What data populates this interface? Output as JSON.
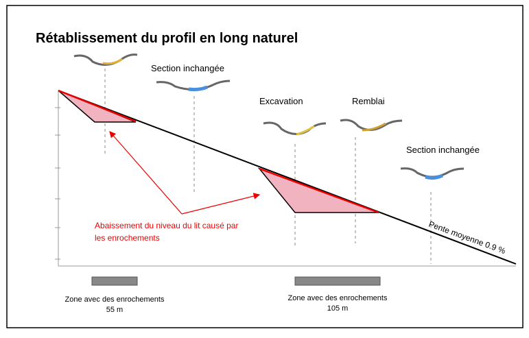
{
  "title": "Rétablissement du profil en long naturel",
  "labels": {
    "section_left": "Section inchangée",
    "excavation": "Excavation",
    "remblai": "Remblai",
    "section_right": "Section inchangée"
  },
  "annotation": {
    "lines": [
      "Abaissement du niveau du lit causé par",
      "les enrochements"
    ]
  },
  "slope": "Pente moyenne 0.9 %",
  "zones": [
    {
      "label": "Zone avec des enrochements",
      "length": "55 m"
    },
    {
      "label": "Zone avec des enrochements",
      "length": "105 m"
    }
  ]
}
